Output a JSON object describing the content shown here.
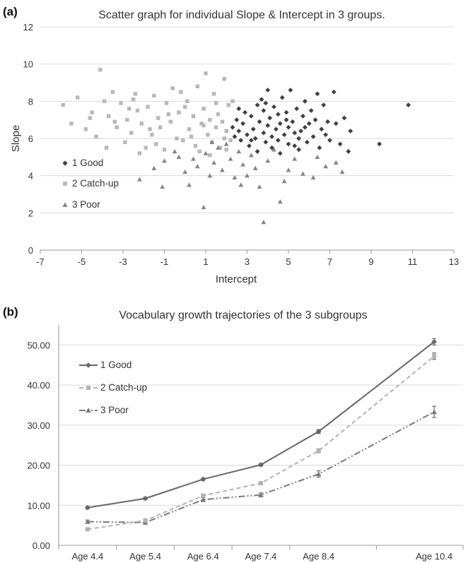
{
  "chart_data": [
    {
      "panel_label": "(a)",
      "type": "scatter",
      "title": "Scatter graph for individual Slope & Intercept in 3 groups.",
      "xlabel": "Intercept",
      "ylabel": "Slope",
      "xlim": [
        -7,
        13
      ],
      "ylim": [
        0,
        12
      ],
      "xticks": [
        "-7",
        "-5",
        "-3",
        "-1",
        "1",
        "3",
        "5",
        "7",
        "9",
        "11",
        "13"
      ],
      "yticks": [
        "0",
        "2",
        "4",
        "6",
        "8",
        "10",
        "12"
      ],
      "grid": true,
      "legend_position": "left",
      "colors": {
        "good": "#404040",
        "catchup": "#b8b8b8",
        "poor": "#858585"
      },
      "series": [
        {
          "name": "1 Good",
          "marker": "diamond",
          "points": [
            [
              2.3,
              6.6
            ],
            [
              2.4,
              6.1
            ],
            [
              2.5,
              7.0
            ],
            [
              2.6,
              6.4
            ],
            [
              2.7,
              5.9
            ],
            [
              2.8,
              6.8
            ],
            [
              2.9,
              7.4
            ],
            [
              3.0,
              6.2
            ],
            [
              3.1,
              5.6
            ],
            [
              3.2,
              7.2
            ],
            [
              3.3,
              6.5
            ],
            [
              3.4,
              6.0
            ],
            [
              3.5,
              7.8
            ],
            [
              3.5,
              5.3
            ],
            [
              3.6,
              6.9
            ],
            [
              3.7,
              8.1
            ],
            [
              3.8,
              6.3
            ],
            [
              3.8,
              7.5
            ],
            [
              3.9,
              5.8
            ],
            [
              4.0,
              6.7
            ],
            [
              4.0,
              8.6
            ],
            [
              4.1,
              7.1
            ],
            [
              4.2,
              6.1
            ],
            [
              4.2,
              5.5
            ],
            [
              4.3,
              7.7
            ],
            [
              4.4,
              6.5
            ],
            [
              4.5,
              7.3
            ],
            [
              4.5,
              5.9
            ],
            [
              4.6,
              6.8
            ],
            [
              4.7,
              8.2
            ],
            [
              4.8,
              6.2
            ],
            [
              4.9,
              7.0
            ],
            [
              5.0,
              5.7
            ],
            [
              5.0,
              6.6
            ],
            [
              5.1,
              8.6
            ],
            [
              5.2,
              6.9
            ],
            [
              5.3,
              6.3
            ],
            [
              5.4,
              7.6
            ],
            [
              5.5,
              6.0
            ],
            [
              5.5,
              5.4
            ],
            [
              5.6,
              6.4
            ],
            [
              5.7,
              7.2
            ],
            [
              5.8,
              8.0
            ],
            [
              5.9,
              5.8
            ],
            [
              6.0,
              6.8
            ],
            [
              6.1,
              7.5
            ],
            [
              6.2,
              6.1
            ],
            [
              6.3,
              7.0
            ],
            [
              6.4,
              8.4
            ],
            [
              6.5,
              5.5
            ],
            [
              6.6,
              6.5
            ],
            [
              6.7,
              7.8
            ],
            [
              6.8,
              6.2
            ],
            [
              7.0,
              5.9
            ],
            [
              7.2,
              8.5
            ],
            [
              7.3,
              6.8
            ],
            [
              7.5,
              5.7
            ],
            [
              7.7,
              7.1
            ],
            [
              7.9,
              5.3
            ],
            [
              8.0,
              6.4
            ],
            [
              9.4,
              5.7
            ],
            [
              10.8,
              7.8
            ],
            [
              3.2,
              5.9
            ],
            [
              4.6,
              5.2
            ],
            [
              5.3,
              5.6
            ],
            [
              3.9,
              7.9
            ],
            [
              4.9,
              7.4
            ],
            [
              6.9,
              6.9
            ],
            [
              2.6,
              7.6
            ],
            [
              5.8,
              6.6
            ]
          ]
        },
        {
          "name": "2 Catch-up",
          "marker": "square",
          "points": [
            [
              -5.9,
              7.8
            ],
            [
              -5.5,
              6.8
            ],
            [
              -5.2,
              8.2
            ],
            [
              -4.8,
              6.5
            ],
            [
              -4.5,
              7.4
            ],
            [
              -4.3,
              6.1
            ],
            [
              -4.1,
              9.7
            ],
            [
              -3.9,
              8.0
            ],
            [
              -3.7,
              7.2
            ],
            [
              -3.5,
              8.5
            ],
            [
              -3.3,
              6.6
            ],
            [
              -3.1,
              7.9
            ],
            [
              -2.9,
              5.8
            ],
            [
              -2.8,
              7.0
            ],
            [
              -2.6,
              6.3
            ],
            [
              -2.5,
              8.1
            ],
            [
              -2.3,
              7.5
            ],
            [
              -2.1,
              6.8
            ],
            [
              -1.9,
              5.5
            ],
            [
              -1.8,
              7.7
            ],
            [
              -1.6,
              6.2
            ],
            [
              -1.5,
              8.3
            ],
            [
              -1.3,
              7.1
            ],
            [
              -1.2,
              6.6
            ],
            [
              -1.0,
              5.4
            ],
            [
              -0.9,
              7.9
            ],
            [
              -0.7,
              6.9
            ],
            [
              -0.6,
              8.7
            ],
            [
              -0.4,
              6.0
            ],
            [
              -0.3,
              7.4
            ],
            [
              -0.1,
              5.9
            ],
            [
              0.1,
              8.0
            ],
            [
              0.2,
              6.5
            ],
            [
              0.4,
              7.2
            ],
            [
              0.5,
              5.6
            ],
            [
              0.6,
              8.8
            ],
            [
              0.8,
              6.8
            ],
            [
              0.9,
              7.6
            ],
            [
              1.0,
              9.5
            ],
            [
              1.1,
              6.2
            ],
            [
              1.2,
              7.0
            ],
            [
              1.3,
              5.8
            ],
            [
              1.4,
              8.4
            ],
            [
              1.5,
              6.6
            ],
            [
              1.6,
              7.3
            ],
            [
              1.7,
              5.5
            ],
            [
              1.8,
              6.9
            ],
            [
              1.9,
              9.2
            ],
            [
              2.0,
              6.4
            ],
            [
              2.1,
              7.8
            ],
            [
              2.2,
              5.9
            ],
            [
              2.3,
              8.0
            ],
            [
              -3.4,
              6.9
            ],
            [
              -2.2,
              5.2
            ],
            [
              -0.8,
              7.3
            ],
            [
              0.3,
              6.1
            ],
            [
              1.5,
              7.9
            ],
            [
              -1.4,
              5.7
            ],
            [
              -4.6,
              7.1
            ],
            [
              0.7,
              5.3
            ],
            [
              -2.7,
              7.6
            ],
            [
              1.9,
              6.0
            ],
            [
              -0.2,
              8.5
            ],
            [
              1.2,
              5.1
            ],
            [
              -3.8,
              5.5
            ],
            [
              -1.7,
              6.5
            ],
            [
              0.0,
              7.7
            ],
            [
              2.0,
              5.4
            ],
            [
              -2.4,
              8.4
            ],
            [
              0.9,
              6.7
            ]
          ]
        },
        {
          "name": "3 Poor",
          "marker": "triangle",
          "points": [
            [
              -2.2,
              3.8
            ],
            [
              -1.5,
              4.4
            ],
            [
              -1.0,
              4.8
            ],
            [
              -0.5,
              5.3
            ],
            [
              -0.3,
              5.0
            ],
            [
              0.2,
              3.5
            ],
            [
              0.4,
              4.9
            ],
            [
              0.6,
              4.5
            ],
            [
              0.9,
              2.3
            ],
            [
              1.0,
              5.2
            ],
            [
              1.2,
              4.0
            ],
            [
              1.4,
              4.7
            ],
            [
              1.6,
              5.5
            ],
            [
              1.8,
              4.3
            ],
            [
              2.0,
              5.7
            ],
            [
              2.2,
              4.9
            ],
            [
              2.4,
              3.9
            ],
            [
              2.6,
              5.3
            ],
            [
              2.8,
              4.6
            ],
            [
              3.0,
              4.0
            ],
            [
              3.2,
              5.1
            ],
            [
              3.4,
              4.4
            ],
            [
              3.6,
              3.4
            ],
            [
              3.8,
              1.5
            ],
            [
              4.0,
              4.8
            ],
            [
              4.3,
              5.4
            ],
            [
              4.6,
              2.6
            ],
            [
              4.8,
              3.7
            ],
            [
              5.0,
              4.3
            ],
            [
              5.3,
              4.9
            ],
            [
              5.7,
              4.1
            ],
            [
              6.2,
              3.9
            ],
            [
              6.4,
              5.0
            ],
            [
              6.8,
              4.5
            ],
            [
              7.3,
              4.7
            ],
            [
              7.6,
              4.2
            ],
            [
              -1.1,
              3.4
            ],
            [
              0.0,
              4.2
            ],
            [
              1.3,
              5.8
            ],
            [
              2.7,
              3.5
            ]
          ]
        }
      ]
    },
    {
      "panel_label": "(b)",
      "type": "line",
      "title": "Vocabulary growth trajectories of the 3 subgroups",
      "xlabel": "",
      "ylabel": "",
      "categories": [
        "Age 4.4",
        "Age 5.4",
        "Age 6.4",
        "Age 7.4",
        "Age 8.4",
        "Age 10.4"
      ],
      "x": [
        4.4,
        5.4,
        6.4,
        7.4,
        8.4,
        10.4
      ],
      "xlim": [
        3.9,
        10.9
      ],
      "ylim": [
        0,
        55
      ],
      "yticks": [
        "0.00",
        "10.00",
        "20.00",
        "30.00",
        "40.00",
        "50.00"
      ],
      "grid": true,
      "legend_position": "top-left",
      "error_bars": true,
      "series": [
        {
          "name": "1 Good",
          "marker": "diamond",
          "line": "solid",
          "color": "#666666",
          "values": [
            9.4,
            11.7,
            16.5,
            20.1,
            28.4,
            50.8
          ],
          "errors": [
            0.3,
            0.3,
            0.3,
            0.3,
            0.5,
            0.8
          ]
        },
        {
          "name": "2 Catch-up",
          "marker": "square",
          "line": "dashed",
          "color": "#b3b3b3",
          "values": [
            4.0,
            6.2,
            12.4,
            15.5,
            23.6,
            47.2
          ],
          "errors": [
            0.3,
            0.3,
            0.4,
            0.4,
            0.5,
            0.8
          ]
        },
        {
          "name": "3 Poor",
          "marker": "triangle",
          "line": "dashdotdot",
          "color": "#7a7a7a",
          "values": [
            5.9,
            5.7,
            11.4,
            12.6,
            17.8,
            33.3
          ],
          "errors": [
            0.4,
            0.4,
            0.5,
            0.5,
            0.8,
            1.4
          ]
        }
      ]
    }
  ]
}
